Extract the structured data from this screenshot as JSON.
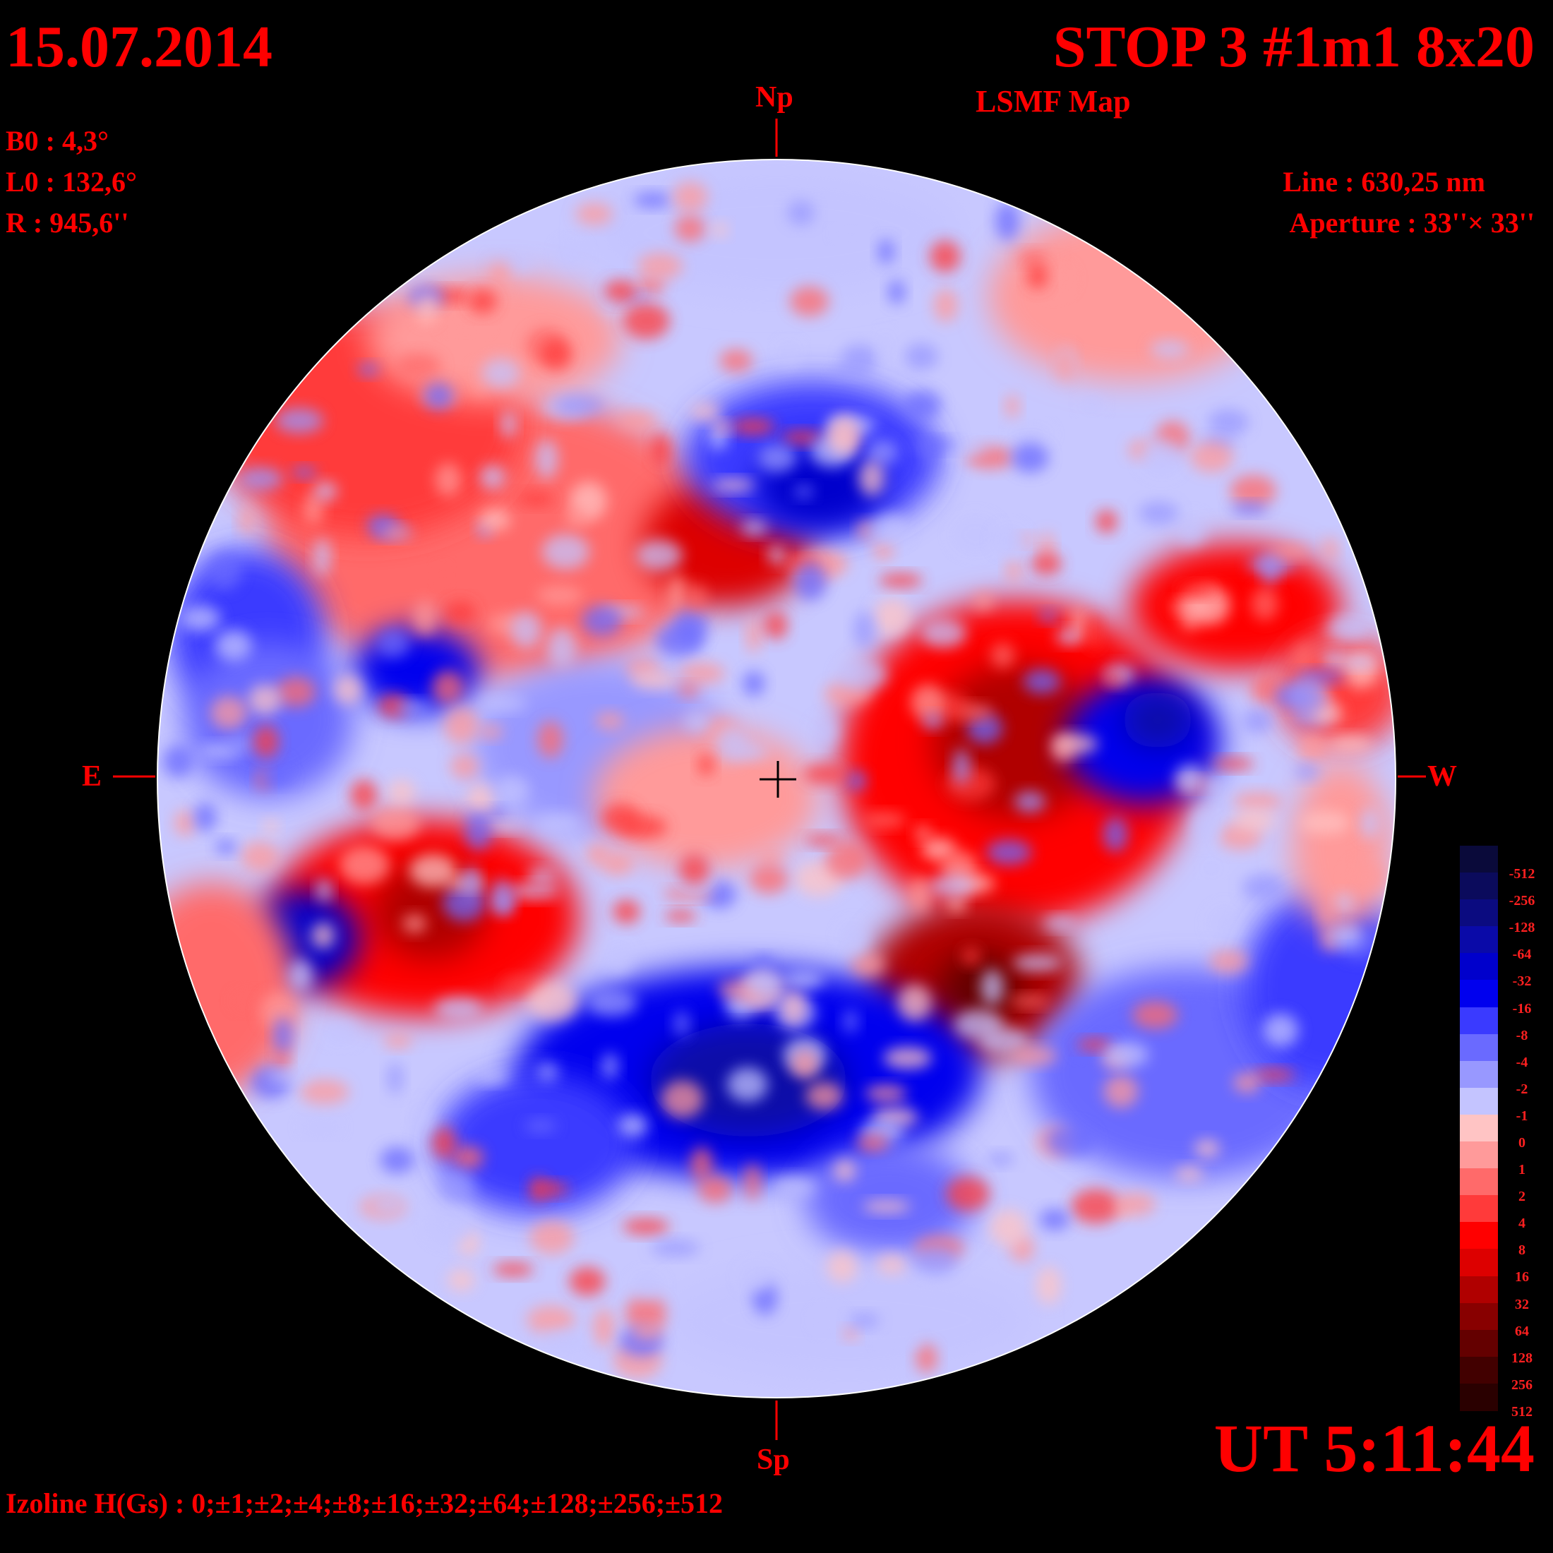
{
  "header": {
    "date": "15.07.2014",
    "title": "STOP 3 #1m1 8x20",
    "map_type": "LSMF  Map"
  },
  "params": {
    "b0": "B0 : 4,3°",
    "l0": "L0 : 132,6°",
    "radius": "R  : 945,6''"
  },
  "instrument": {
    "line": "Line :  630,25 nm",
    "aperture": "Aperture : 33''× 33''"
  },
  "directions": {
    "north": "Np",
    "south": "Sp",
    "east": "E",
    "west": "W"
  },
  "time": "UT 5:11:44",
  "izoline": "Izoline H(Gs) : 0;±1;±2;±4;±8;±16;±32;±64;±128;±256;±512",
  "legend": {
    "levels": [
      {
        "label": "-512",
        "color": "#0a0a3a"
      },
      {
        "label": "-256",
        "color": "#0b0b5c"
      },
      {
        "label": "-128",
        "color": "#0b0b80"
      },
      {
        "label": "-64",
        "color": "#0a0aa8"
      },
      {
        "label": "-32",
        "color": "#0000cc"
      },
      {
        "label": "-16",
        "color": "#0000ee"
      },
      {
        "label": "-8",
        "color": "#3a3aff"
      },
      {
        "label": "-4",
        "color": "#6a6aff"
      },
      {
        "label": "-2",
        "color": "#9898ff"
      },
      {
        "label": "-1",
        "color": "#c4c4ff"
      },
      {
        "label": "0",
        "color": "#ffc4c4"
      },
      {
        "label": "1",
        "color": "#ff9a9a"
      },
      {
        "label": "2",
        "color": "#ff6a6a"
      },
      {
        "label": "4",
        "color": "#ff3a3a"
      },
      {
        "label": "8",
        "color": "#ff0000"
      },
      {
        "label": "16",
        "color": "#dd0000"
      },
      {
        "label": "32",
        "color": "#b00000"
      },
      {
        "label": "64",
        "color": "#880000"
      },
      {
        "label": "128",
        "color": "#640000"
      },
      {
        "label": "256",
        "color": "#420000"
      },
      {
        "label": "512",
        "color": "#2a0000"
      }
    ]
  }
}
